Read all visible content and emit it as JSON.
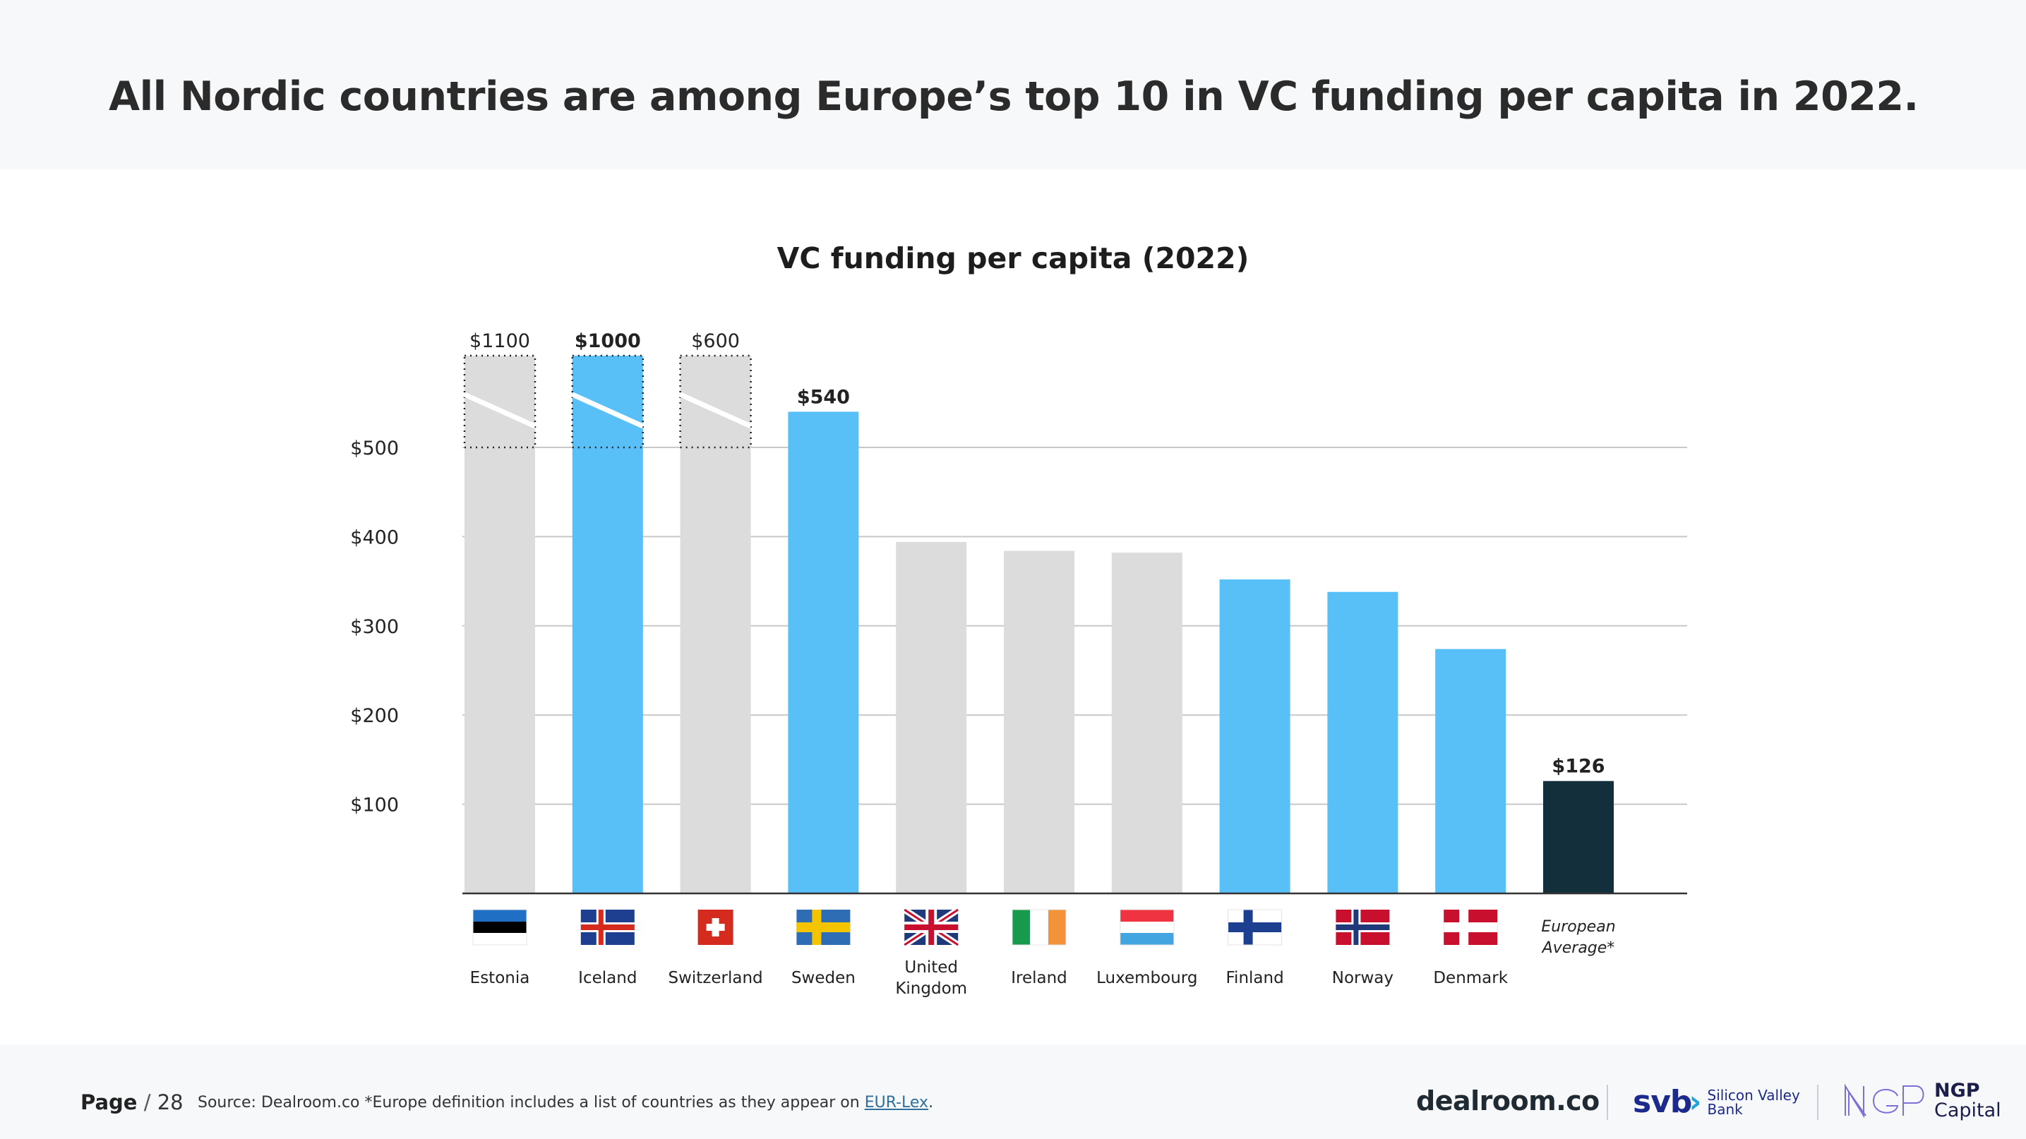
{
  "headline": "All Nordic countries are among Europe’s top 10 in VC funding per capita in 2022.",
  "chart_data": {
    "type": "bar",
    "title": "VC funding per capita (2022)",
    "xlabel": "",
    "ylabel": "",
    "ylim": [
      0,
      600
    ],
    "axis_break_above": 500,
    "grid": true,
    "y_ticks": [
      {
        "value": 100,
        "label": "$100"
      },
      {
        "value": 200,
        "label": "$200"
      },
      {
        "value": 300,
        "label": "$300"
      },
      {
        "value": 400,
        "label": "$400"
      },
      {
        "value": 500,
        "label": "$500"
      }
    ],
    "categories": [
      "Estonia",
      "Iceland",
      "Switzerland",
      "Sweden",
      "United Kingdom",
      "Ireland",
      "Luxembourg",
      "Finland",
      "Norway",
      "Denmark",
      "European Average*"
    ],
    "values": [
      1100,
      1000,
      600,
      540,
      394,
      384,
      382,
      352,
      338,
      274,
      126
    ],
    "data_labels": [
      "$1100",
      "$1000",
      "$600",
      "$540",
      "",
      "",
      "",
      "",
      "",
      "",
      "$126"
    ],
    "highlight": [
      "other",
      "nordic",
      "other",
      "nordic",
      "other",
      "other",
      "other",
      "nordic",
      "nordic",
      "nordic",
      "average"
    ],
    "colors": {
      "other": "#dcdcdc",
      "nordic": "#59c0f7",
      "average": "#132f3b",
      "grid": "#c8c8c8",
      "axis": "#333333"
    },
    "flags": [
      "estonia",
      "iceland",
      "switzerland",
      "sweden",
      "united-kingdom",
      "ireland",
      "luxembourg",
      "finland",
      "norway",
      "denmark",
      ""
    ]
  },
  "footer": {
    "page_label": "Page",
    "page_sep": "/",
    "page_number": "28",
    "source_text": "Source: Dealroom.co *Europe definition includes a list of countries as they appear on",
    "source_link": "EUR-Lex",
    "source_end": "."
  },
  "logos": {
    "dealroom": "dealroom.co",
    "svb_mark": "svb",
    "svb_line1": "Silicon Valley",
    "svb_line2": "Bank",
    "ngp_line1": "NGP",
    "ngp_line2": "Capital"
  }
}
